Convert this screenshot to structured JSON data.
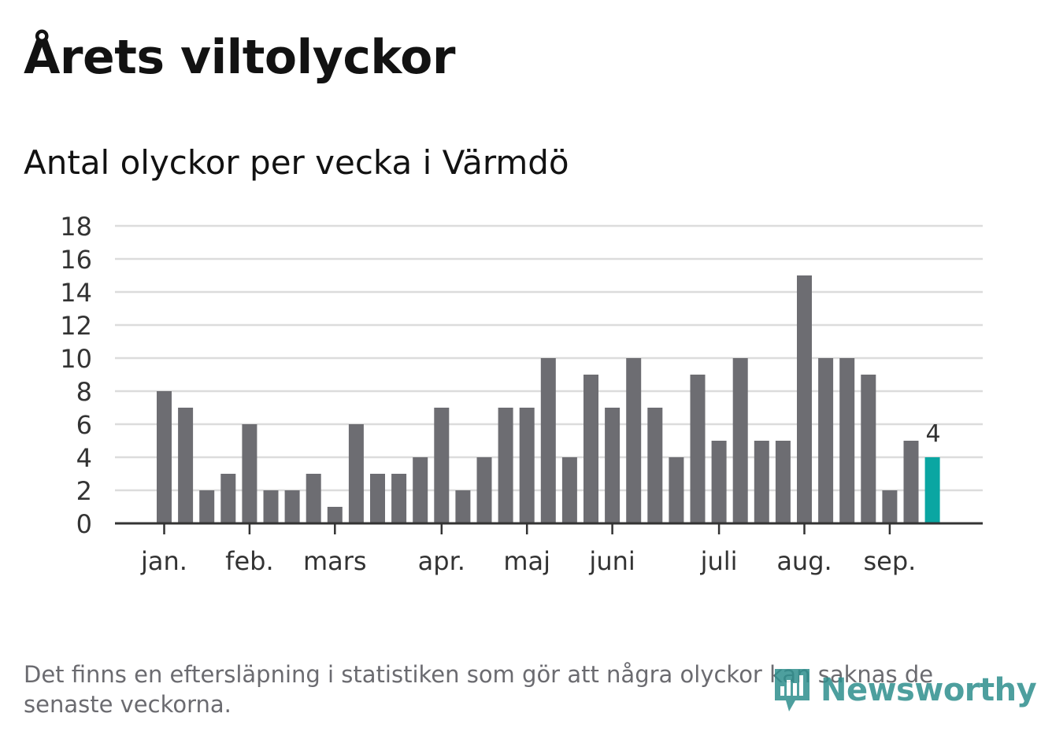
{
  "title": "Årets viltolyckor",
  "subtitle": "Antal olyckor per vecka i Värmdö",
  "note": "Det finns en eftersläpning i statistiken som gör att några olyckor kan saknas de senaste veckorna.",
  "logo": {
    "text": "Newsworthy",
    "icon": "newsworthy-logo-icon"
  },
  "colors": {
    "bar": "#6d6d72",
    "highlight": "#0aa6a2",
    "grid": "#dcdcdc",
    "axis": "#333333",
    "text": "#333333"
  },
  "chart_data": {
    "type": "bar",
    "title": "Antal olyckor per vecka i Värmdö",
    "xlabel": "",
    "ylabel": "",
    "ylim": [
      0,
      18
    ],
    "yticks": [
      0,
      2,
      4,
      6,
      8,
      10,
      12,
      14,
      16,
      18
    ],
    "grid": true,
    "values": [
      8,
      7,
      2,
      3,
      6,
      2,
      2,
      3,
      1,
      6,
      3,
      3,
      4,
      7,
      2,
      4,
      7,
      7,
      10,
      4,
      9,
      7,
      10,
      7,
      4,
      9,
      5,
      10,
      5,
      5,
      15,
      10,
      10,
      9,
      2,
      5,
      4
    ],
    "month_labels": [
      {
        "label": "jan.",
        "bar_index": 0
      },
      {
        "label": "feb.",
        "bar_index": 4
      },
      {
        "label": "mars",
        "bar_index": 8
      },
      {
        "label": "apr.",
        "bar_index": 13
      },
      {
        "label": "maj",
        "bar_index": 17
      },
      {
        "label": "juni",
        "bar_index": 21
      },
      {
        "label": "juli",
        "bar_index": 26
      },
      {
        "label": "aug.",
        "bar_index": 30
      },
      {
        "label": "sep.",
        "bar_index": 34
      }
    ],
    "highlight_index": 36,
    "highlight_label": "4"
  }
}
